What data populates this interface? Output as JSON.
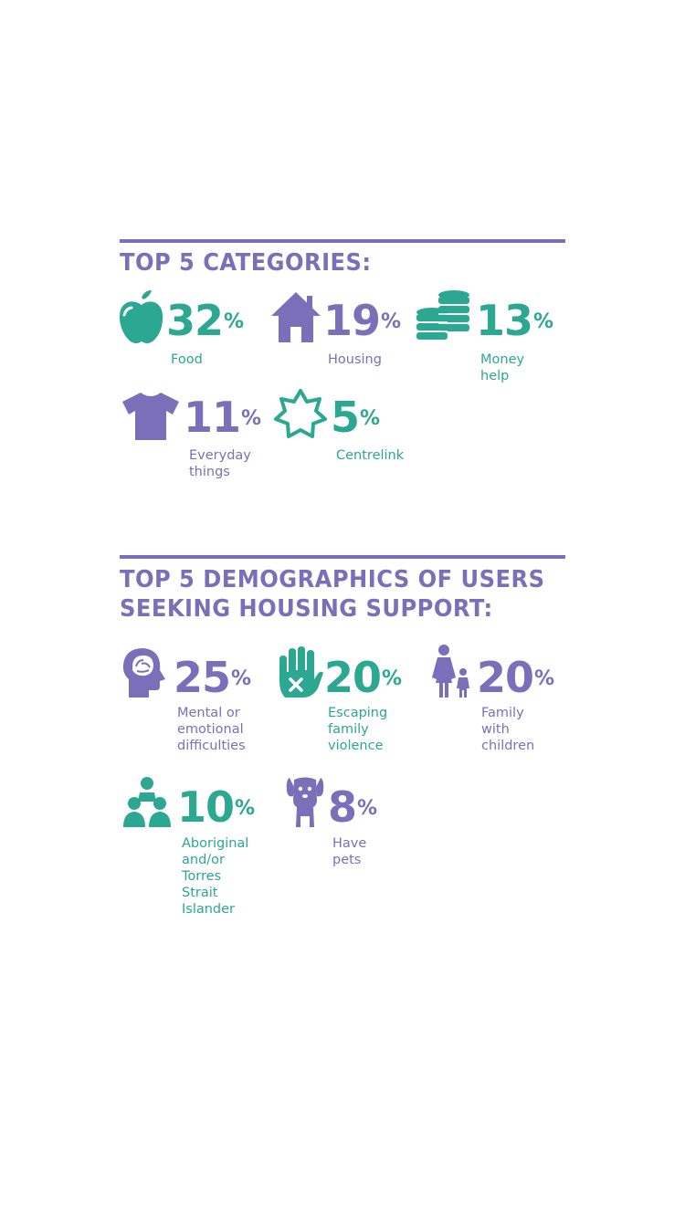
{
  "colors": {
    "purple": "#7a6fb8",
    "teal": "#2ba792",
    "background": "#ffffff"
  },
  "categories": {
    "heading": "TOP 5 CATEGORIES:",
    "items": [
      {
        "icon": "apple-icon",
        "value": "32",
        "unit": "%",
        "label": "Food",
        "color": "teal"
      },
      {
        "icon": "house-icon",
        "value": "19",
        "unit": "%",
        "label": "Housing",
        "color": "purple"
      },
      {
        "icon": "coins-icon",
        "value": "13",
        "unit": "%",
        "label": "Money\nhelp",
        "color": "teal"
      },
      {
        "icon": "tshirt-icon",
        "value": "11",
        "unit": "%",
        "label": "Everyday\nthings",
        "color": "purple"
      },
      {
        "icon": "star-badge-icon",
        "value": "5",
        "unit": "%",
        "label": "Centrelink",
        "color": "teal"
      }
    ]
  },
  "demographics": {
    "heading_line1": "TOP 5 DEMOGRAPHICS OF USERS",
    "heading_line2": "SEEKING HOUSING SUPPORT:",
    "items": [
      {
        "icon": "head-brain-icon",
        "value": "25",
        "unit": "%",
        "label": "Mental or\nemotional\ndifficulties",
        "color": "purple"
      },
      {
        "icon": "stop-hand-icon",
        "value": "20",
        "unit": "%",
        "label": "Escaping\nfamily\nviolence",
        "color": "teal"
      },
      {
        "icon": "parent-child-icon",
        "value": "20",
        "unit": "%",
        "label": "Family with\nchildren",
        "color": "purple"
      },
      {
        "icon": "people-group-icon",
        "value": "10",
        "unit": "%",
        "label": "Aboriginal\nand/or\nTorres Strait\nIslander",
        "color": "teal"
      },
      {
        "icon": "dog-icon",
        "value": "8",
        "unit": "%",
        "label": "Have\npets",
        "color": "purple"
      }
    ]
  }
}
